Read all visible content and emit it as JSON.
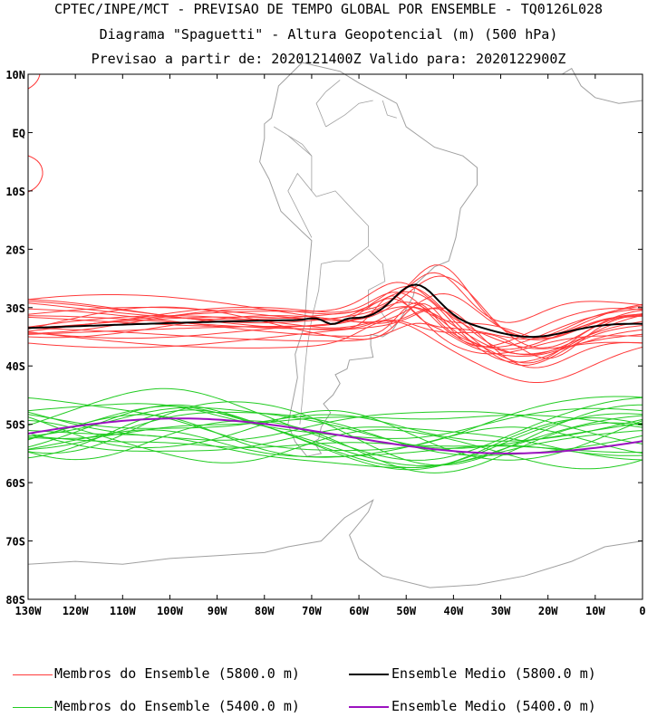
{
  "header": {
    "line1": "CPTEC/INPE/MCT - PREVISAO DE TEMPO GLOBAL POR ENSEMBLE - TQ0126L028",
    "line2": "Diagrama \"Spaguetti\" - Altura Geopotencial (m) (500 hPa)",
    "line3": "Previsao a partir de: 2020121400Z  Valido para: 2020122900Z"
  },
  "map": {
    "lon_range": [
      -130,
      0
    ],
    "lat_range": [
      -80,
      10
    ],
    "lat_ticks": [
      "10N",
      "EQ",
      "10S",
      "20S",
      "30S",
      "40S",
      "50S",
      "60S",
      "70S",
      "80S"
    ],
    "lon_ticks": [
      "130W",
      "120W",
      "110W",
      "100W",
      "90W",
      "80W",
      "70W",
      "60W",
      "50W",
      "40W",
      "30W",
      "20W",
      "10W",
      "0"
    ]
  },
  "colors": {
    "member_5800": "#ff3a3a",
    "mean_5800": "#000000",
    "member_5400": "#22cc22",
    "mean_5400": "#9b12c0",
    "coast": "#a0a0a0"
  },
  "legend": {
    "member_5800": "Membros do Ensemble (5800.0 m)",
    "mean_5800": "Ensemble Medio (5800.0 m)",
    "member_5400": "Membros do Ensemble (5400.0 m)",
    "mean_5400": "Ensemble Medio (5400.0 m)"
  }
}
